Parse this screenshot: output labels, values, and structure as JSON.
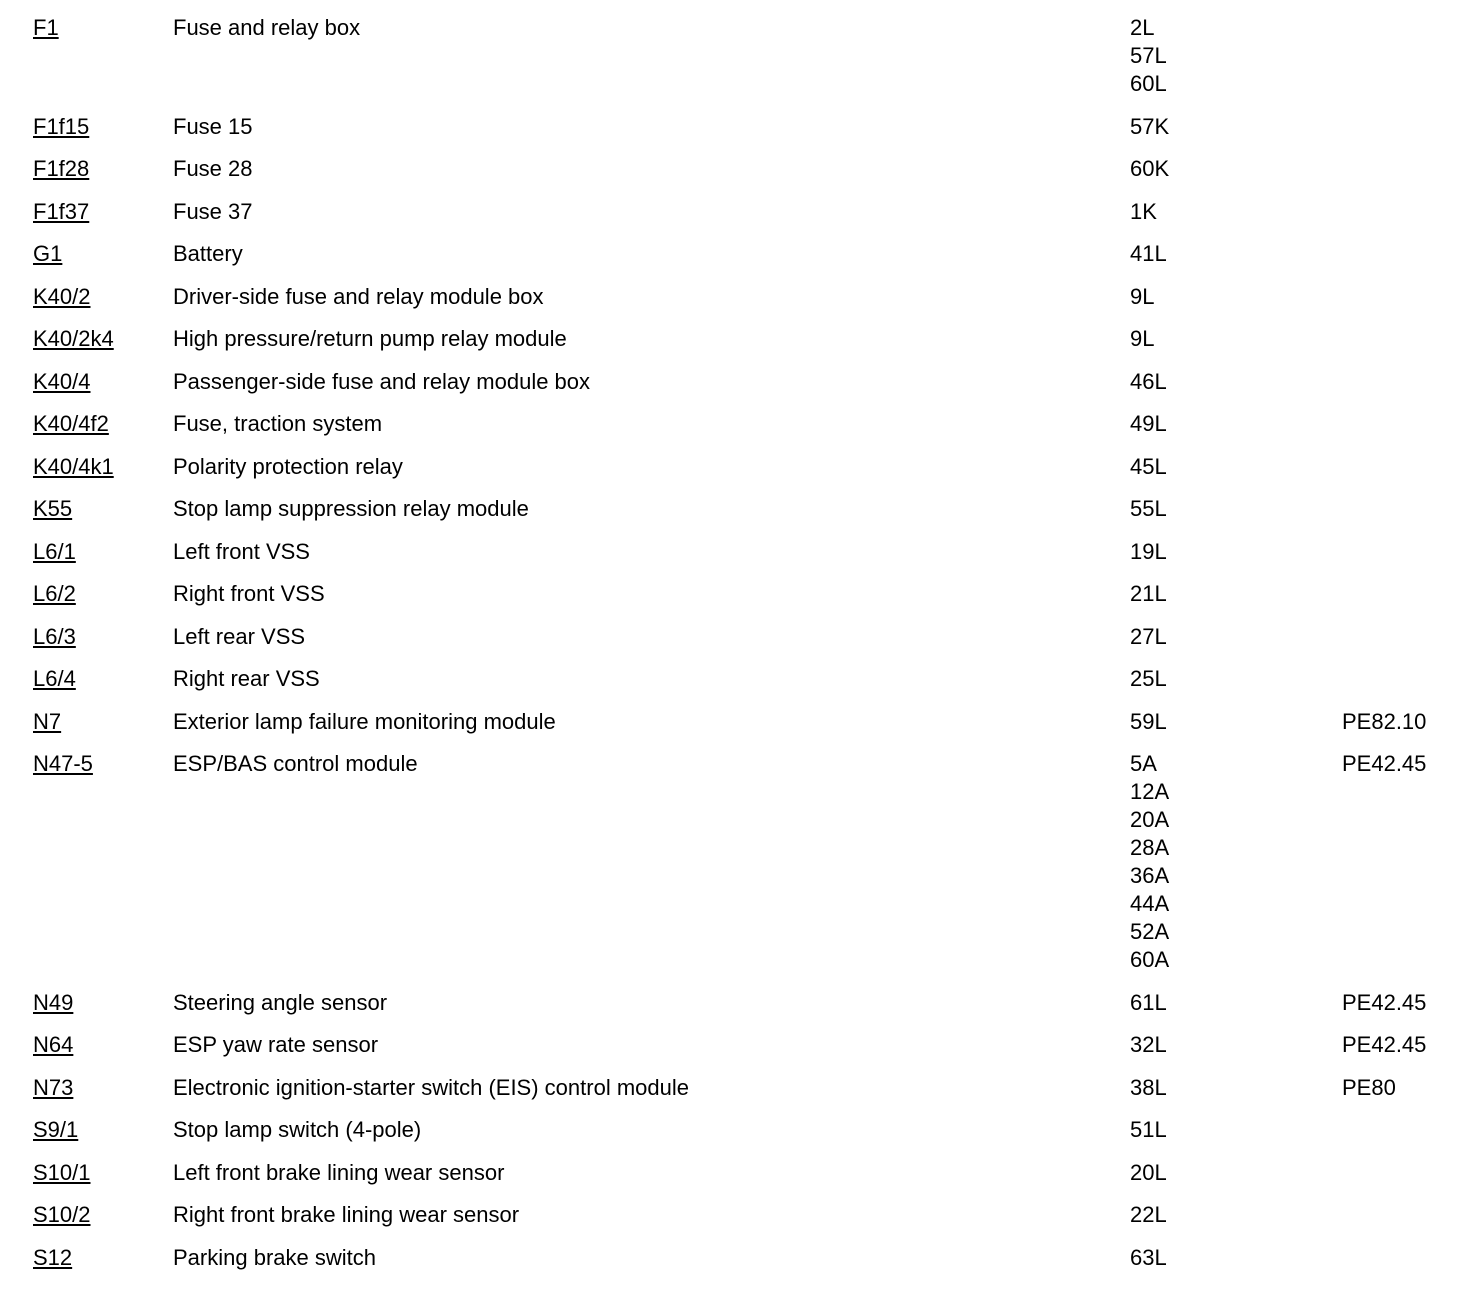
{
  "page": {
    "background_color": "#ffffff",
    "text_color": "#000000"
  },
  "legend_table": {
    "columns": [
      "code",
      "description",
      "locations",
      "reference"
    ],
    "rows": [
      {
        "code": "F1",
        "description": "Fuse and relay box",
        "locations": [
          "2L",
          "57L",
          "60L"
        ],
        "reference": ""
      },
      {
        "code": "F1f15",
        "description": "Fuse 15",
        "locations": [
          "57K"
        ],
        "reference": ""
      },
      {
        "code": "F1f28",
        "description": "Fuse 28",
        "locations": [
          "60K"
        ],
        "reference": ""
      },
      {
        "code": "F1f37",
        "description": "Fuse 37",
        "locations": [
          "1K"
        ],
        "reference": ""
      },
      {
        "code": "G1",
        "description": "Battery",
        "locations": [
          "41L"
        ],
        "reference": ""
      },
      {
        "code": "K40/2",
        "description": "Driver-side fuse and relay module box",
        "locations": [
          "9L"
        ],
        "reference": ""
      },
      {
        "code": "K40/2k4",
        "description": "High pressure/return pump relay module",
        "locations": [
          "9L"
        ],
        "reference": ""
      },
      {
        "code": "K40/4",
        "description": "Passenger-side fuse and relay module box",
        "locations": [
          "46L"
        ],
        "reference": ""
      },
      {
        "code": "K40/4f2",
        "description": "Fuse, traction system",
        "locations": [
          "49L"
        ],
        "reference": ""
      },
      {
        "code": "K40/4k1",
        "description": "Polarity protection relay",
        "locations": [
          "45L"
        ],
        "reference": ""
      },
      {
        "code": "K55",
        "description": "Stop lamp suppression relay module",
        "locations": [
          "55L"
        ],
        "reference": ""
      },
      {
        "code": "L6/1",
        "description": "Left front VSS",
        "locations": [
          "19L"
        ],
        "reference": ""
      },
      {
        "code": "L6/2",
        "description": "Right front VSS",
        "locations": [
          "21L"
        ],
        "reference": ""
      },
      {
        "code": "L6/3",
        "description": "Left rear VSS",
        "locations": [
          "27L"
        ],
        "reference": ""
      },
      {
        "code": "L6/4",
        "description": "Right rear VSS",
        "locations": [
          "25L"
        ],
        "reference": ""
      },
      {
        "code": "N7",
        "description": "Exterior lamp failure monitoring module",
        "locations": [
          "59L"
        ],
        "reference": "PE82.10"
      },
      {
        "code": "N47-5",
        "description": "ESP/BAS control module",
        "locations": [
          "5A",
          "12A",
          "20A",
          "28A",
          "36A",
          "44A",
          "52A",
          "60A"
        ],
        "reference": "PE42.45"
      },
      {
        "code": "N49",
        "description": "Steering angle sensor",
        "locations": [
          "61L"
        ],
        "reference": "PE42.45"
      },
      {
        "code": "N64",
        "description": "ESP yaw rate sensor",
        "locations": [
          "32L"
        ],
        "reference": "PE42.45"
      },
      {
        "code": "N73",
        "description": "Electronic ignition-starter switch (EIS) control module",
        "locations": [
          "38L"
        ],
        "reference": "PE80"
      },
      {
        "code": "S9/1",
        "description": "Stop lamp switch (4-pole)",
        "locations": [
          "51L"
        ],
        "reference": ""
      },
      {
        "code": "S10/1",
        "description": "Left front brake lining wear sensor",
        "locations": [
          "20L"
        ],
        "reference": ""
      },
      {
        "code": "S10/2",
        "description": "Right front brake lining wear sensor",
        "locations": [
          "22L"
        ],
        "reference": ""
      },
      {
        "code": "S12",
        "description": "Parking brake switch",
        "locations": [
          "63L"
        ],
        "reference": ""
      }
    ]
  }
}
